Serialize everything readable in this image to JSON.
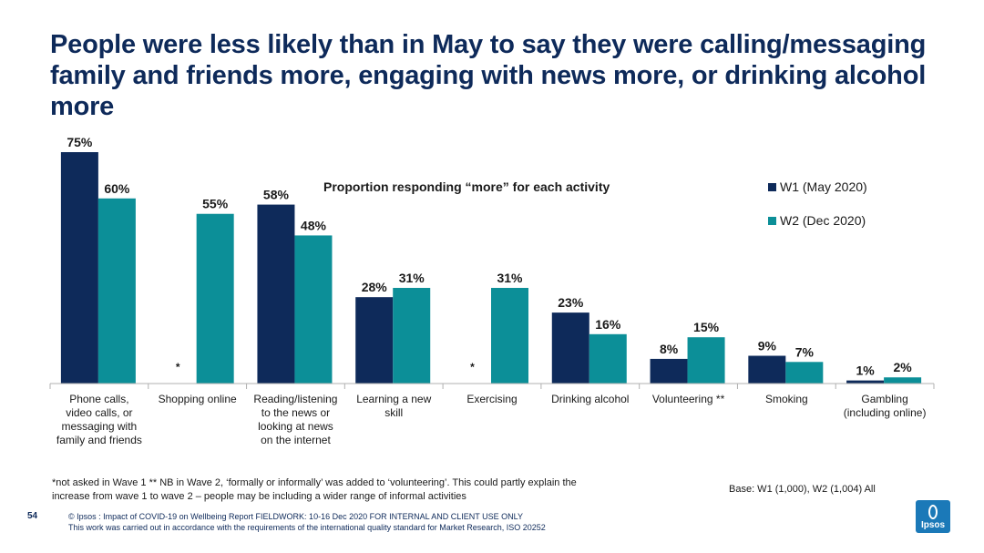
{
  "slide": {
    "title": "People were less likely than in May to say they were calling/messaging family and friends more, engaging with news more, or drinking alcohol more",
    "footnote_line1": "*not asked in Wave 1  ** NB in Wave 2, ‘formally or informally’ was added to ‘volunteering’. This could partly explain the",
    "footnote_line2": "increase from wave 1 to wave 2 – people may be including a wider range of informal activities",
    "base": "Base: W1 (1,000), W2 (1,004) All",
    "page_number": "54",
    "copyright_line1": "© Ipsos : Impact of COVID-19 on Wellbeing Report FIELDWORK: 10-16 Dec 2020 FOR INTERNAL AND CLIENT USE ONLY",
    "copyright_line2": "This work was carried out in accordance with the requirements of the international quality standard for Market Research, ISO 20252",
    "logo_text": "Ipsos"
  },
  "chart_data": {
    "type": "bar",
    "title": "Proportion responding “more” for each activity",
    "ylim": [
      0,
      75
    ],
    "grid": false,
    "legend_position": "top-right",
    "categories": [
      [
        "Phone calls,",
        "video calls, or",
        "messaging with",
        "family and friends"
      ],
      [
        "Shopping online"
      ],
      [
        "Reading/listening",
        "to the news or",
        "looking at news",
        "on the internet"
      ],
      [
        "Learning a new",
        "skill"
      ],
      [
        "Exercising"
      ],
      [
        "Drinking alcohol"
      ],
      [
        "Volunteering **"
      ],
      [
        "Smoking"
      ],
      [
        "Gambling",
        "(including online)"
      ]
    ],
    "series": [
      {
        "name": "W1 (May 2020)",
        "color": "#0e2a5a",
        "values": [
          75,
          null,
          58,
          28,
          null,
          23,
          8,
          9,
          1
        ],
        "labels": [
          "75%",
          "*",
          "58%",
          "28%",
          "*",
          "23%",
          "8%",
          "9%",
          "1%"
        ]
      },
      {
        "name": "W2 (Dec 2020)",
        "color": "#0c8f98",
        "values": [
          60,
          55,
          48,
          31,
          31,
          16,
          15,
          7,
          2
        ],
        "labels": [
          "60%",
          "55%",
          "48%",
          "31%",
          "31%",
          "16%",
          "15%",
          "7%",
          "2%"
        ]
      }
    ]
  }
}
